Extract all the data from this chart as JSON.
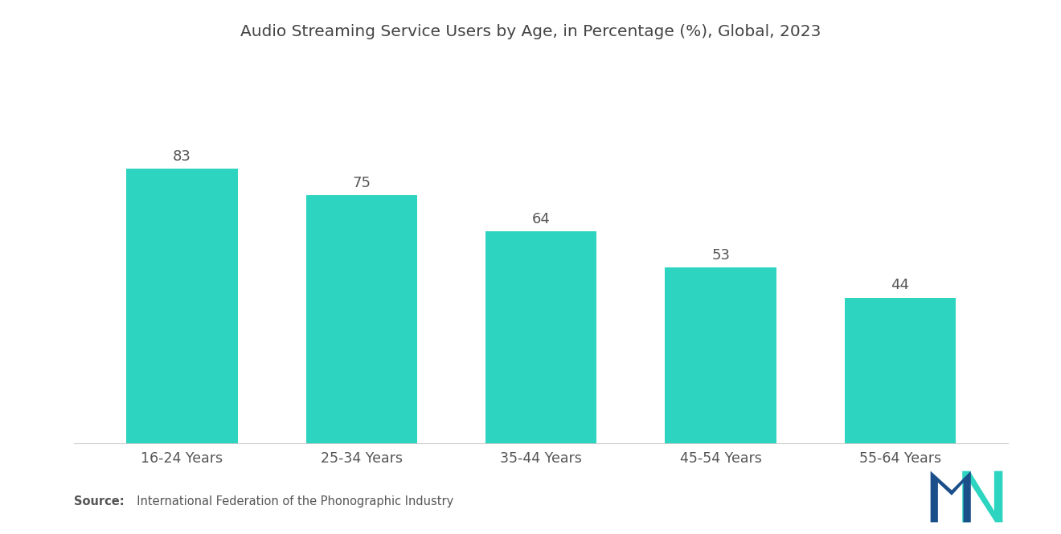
{
  "title": "Audio Streaming Service Users by Age, in Percentage (%), Global, 2023",
  "categories": [
    "16-24 Years",
    "25-34 Years",
    "35-44 Years",
    "45-54 Years",
    "55-64 Years"
  ],
  "values": [
    83,
    75,
    64,
    53,
    44
  ],
  "bar_color": "#2DD4C0",
  "background_color": "#ffffff",
  "title_fontsize": 14.5,
  "label_fontsize": 12.5,
  "value_fontsize": 13,
  "source_bold": "Source:",
  "source_rest": "  International Federation of the Phonographic Industry",
  "ylim": [
    0,
    100
  ],
  "bar_width": 0.62
}
